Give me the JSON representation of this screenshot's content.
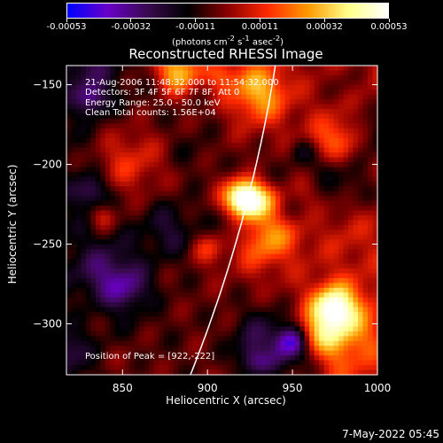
{
  "colors": {
    "background": "#000000",
    "foreground": "#ffffff",
    "colormap": [
      "#0000ff",
      "#6a00c8",
      "#3a0a50",
      "#000000",
      "#8a0000",
      "#ff2a00",
      "#ff9a00",
      "#ffff88",
      "#ffffff"
    ],
    "limb_color": "#ffffff"
  },
  "chart_data": {
    "type": "heatmap",
    "title": "Reconstructed RHESSI Image",
    "xlabel": "Heliocentric X (arcsec)",
    "ylabel": "Heliocentric Y (arcsec)",
    "xlim": [
      817,
      1000
    ],
    "ylim": [
      -332,
      -138
    ],
    "xticks": [
      850,
      900,
      950,
      1000
    ],
    "yticks": [
      -150,
      -200,
      -250,
      -300
    ],
    "colorbar": {
      "ticks": [
        "-0.00053",
        "-0.00032",
        "-0.00011",
        "0.00011",
        "0.00032",
        "0.00053"
      ],
      "range": [
        -0.00053,
        0.00053
      ],
      "unit_parts": [
        "(photons cm",
        "-2",
        " s",
        "-1",
        " asec",
        "-2",
        ")"
      ]
    },
    "peak": [
      922,
      -222
    ],
    "annotations": [
      "21-Aug-2006 11:48:32.000 to 11:54:32.000",
      "Detectors: 3F 4F 5F 6F 7F 8F, Att 0",
      "Energy Range: 25.0 - 50.0 keV",
      "Clean     Total counts: 1.56E+04",
      "Position of Peak = [922,-222]"
    ],
    "grid": false,
    "limb": true
  },
  "footer": {
    "timestamp": "7-May-2022 05:45"
  }
}
